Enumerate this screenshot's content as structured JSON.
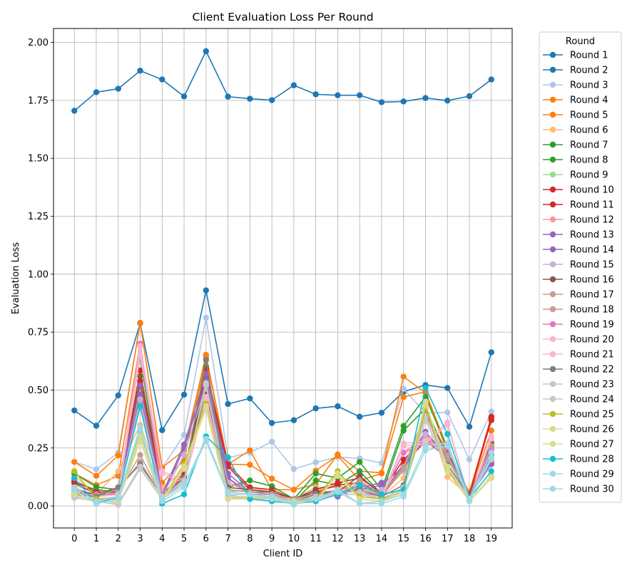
{
  "chart_data": {
    "type": "line",
    "title": "Client Evaluation Loss Per Round",
    "xlabel": "Client ID",
    "ylabel": "Evaluation Loss",
    "xlim": [
      -0.95,
      19.95
    ],
    "ylim": [
      -0.095,
      2.06
    ],
    "x_ticks": [
      0,
      1,
      2,
      3,
      4,
      5,
      6,
      7,
      8,
      9,
      10,
      11,
      12,
      13,
      14,
      15,
      16,
      17,
      18,
      19
    ],
    "y_ticks": [
      0.0,
      0.25,
      0.5,
      0.75,
      1.0,
      1.25,
      1.5,
      1.75,
      2.0
    ],
    "y_tick_labels": [
      "0.00",
      "0.25",
      "0.50",
      "0.75",
      "1.00",
      "1.25",
      "1.50",
      "1.75",
      "2.00"
    ],
    "grid": true,
    "legend_title": "Round",
    "legend_position": "outside-right",
    "x": [
      0,
      1,
      2,
      3,
      4,
      5,
      6,
      7,
      8,
      9,
      10,
      11,
      12,
      13,
      14,
      15,
      16,
      17,
      18,
      19
    ],
    "series": [
      {
        "name": "Round 1",
        "color": "#1f77b4",
        "values": [
          1.705,
          1.785,
          1.8,
          1.878,
          1.84,
          1.767,
          1.962,
          1.766,
          1.757,
          1.751,
          1.815,
          1.776,
          1.772,
          1.772,
          1.742,
          1.745,
          1.76,
          1.749,
          1.768,
          1.84
        ]
      },
      {
        "name": "Round 2",
        "color": "#1f77b4",
        "values": [
          0.412,
          0.346,
          0.477,
          0.788,
          0.327,
          0.48,
          0.93,
          0.44,
          0.464,
          0.358,
          0.37,
          0.421,
          0.43,
          0.385,
          0.402,
          0.493,
          0.522,
          0.509,
          0.342,
          0.663
        ]
      },
      {
        "name": "Round 3",
        "color": "#aec7e8",
        "values": [
          0.19,
          0.158,
          0.23,
          0.79,
          0.165,
          0.306,
          0.812,
          0.208,
          0.23,
          0.277,
          0.159,
          0.188,
          0.211,
          0.205,
          0.185,
          0.505,
          0.4,
          0.404,
          0.2,
          0.407
        ]
      },
      {
        "name": "Round 4",
        "color": "#ff7f0e",
        "values": [
          0.19,
          0.13,
          0.218,
          0.79,
          0.165,
          0.24,
          0.652,
          0.18,
          0.178,
          0.118,
          0.07,
          0.093,
          0.222,
          0.15,
          0.143,
          0.558,
          0.488,
          0.23,
          0.06,
          0.38
        ]
      },
      {
        "name": "Round 5",
        "color": "#ff7f0e",
        "values": [
          0.14,
          0.09,
          0.13,
          0.7,
          0.1,
          0.2,
          0.64,
          0.18,
          0.24,
          0.07,
          0.07,
          0.152,
          0.217,
          0.11,
          0.14,
          0.47,
          0.493,
          0.25,
          0.05,
          0.325
        ]
      },
      {
        "name": "Round 6",
        "color": "#ffbb78",
        "values": [
          0.13,
          0.05,
          0.15,
          0.35,
          0.08,
          0.15,
          0.5,
          0.1,
          0.08,
          0.06,
          0.03,
          0.07,
          0.09,
          0.06,
          0.04,
          0.12,
          0.42,
          0.125,
          0.04,
          0.28
        ]
      },
      {
        "name": "Round 7",
        "color": "#2ca02c",
        "values": [
          0.14,
          0.082,
          0.07,
          0.645,
          0.05,
          0.14,
          0.6,
          0.08,
          0.11,
          0.085,
          0.03,
          0.14,
          0.12,
          0.19,
          0.07,
          0.345,
          0.47,
          0.25,
          0.04,
          0.25
        ]
      },
      {
        "name": "Round 8",
        "color": "#2ca02c",
        "values": [
          0.1,
          0.07,
          0.06,
          0.56,
          0.04,
          0.13,
          0.55,
          0.07,
          0.06,
          0.05,
          0.02,
          0.11,
          0.09,
          0.15,
          0.05,
          0.325,
          0.42,
          0.22,
          0.03,
          0.2
        ]
      },
      {
        "name": "Round 9",
        "color": "#98df8a",
        "values": [
          0.09,
          0.06,
          0.05,
          0.5,
          0.05,
          0.12,
          0.52,
          0.06,
          0.07,
          0.06,
          0.03,
          0.08,
          0.08,
          0.08,
          0.05,
          0.15,
          0.38,
          0.2,
          0.04,
          0.22
        ]
      },
      {
        "name": "Round 10",
        "color": "#d62728",
        "values": [
          0.11,
          0.06,
          0.06,
          0.585,
          0.05,
          0.14,
          0.59,
          0.18,
          0.08,
          0.07,
          0.03,
          0.07,
          0.1,
          0.12,
          0.06,
          0.2,
          0.29,
          0.22,
          0.05,
          0.385
        ]
      },
      {
        "name": "Round 11",
        "color": "#d62728",
        "values": [
          0.1,
          0.05,
          0.05,
          0.54,
          0.04,
          0.13,
          0.57,
          0.17,
          0.07,
          0.06,
          0.03,
          0.06,
          0.09,
          0.1,
          0.05,
          0.18,
          0.28,
          0.21,
          0.05,
          0.37
        ]
      },
      {
        "name": "Round 12",
        "color": "#ff9896",
        "values": [
          0.08,
          0.04,
          0.05,
          0.45,
          0.04,
          0.12,
          0.5,
          0.12,
          0.06,
          0.05,
          0.02,
          0.05,
          0.07,
          0.08,
          0.04,
          0.23,
          0.3,
          0.2,
          0.04,
          0.27
        ]
      },
      {
        "name": "Round 13",
        "color": "#9467bd",
        "values": [
          0.07,
          0.05,
          0.07,
          0.52,
          0.05,
          0.265,
          0.57,
          0.14,
          0.06,
          0.06,
          0.03,
          0.06,
          0.04,
          0.08,
          0.1,
          0.16,
          0.31,
          0.22,
          0.05,
          0.19
        ]
      },
      {
        "name": "Round 14",
        "color": "#9467bd",
        "values": [
          0.06,
          0.04,
          0.06,
          0.48,
          0.04,
          0.25,
          0.54,
          0.12,
          0.05,
          0.05,
          0.02,
          0.05,
          0.05,
          0.07,
          0.09,
          0.17,
          0.32,
          0.21,
          0.04,
          0.18
        ]
      },
      {
        "name": "Round 15",
        "color": "#c5b0d5",
        "values": [
          0.06,
          0.04,
          0.05,
          0.46,
          0.04,
          0.22,
          0.52,
          0.1,
          0.06,
          0.05,
          0.02,
          0.05,
          0.06,
          0.07,
          0.07,
          0.15,
          0.31,
          0.2,
          0.04,
          0.22
        ]
      },
      {
        "name": "Round 16",
        "color": "#8c564b",
        "values": [
          0.06,
          0.05,
          0.08,
          0.18,
          0.04,
          0.12,
          0.48,
          0.08,
          0.07,
          0.06,
          0.03,
          0.06,
          0.06,
          0.13,
          0.05,
          0.16,
          0.4,
          0.23,
          0.05,
          0.27
        ]
      },
      {
        "name": "Round 17",
        "color": "#c49c94",
        "values": [
          0.05,
          0.05,
          0.07,
          0.19,
          0.04,
          0.11,
          0.47,
          0.07,
          0.06,
          0.05,
          0.03,
          0.05,
          0.06,
          0.11,
          0.05,
          0.17,
          0.39,
          0.22,
          0.04,
          0.26
        ]
      },
      {
        "name": "Round 18",
        "color": "#c49c94",
        "values": [
          0.05,
          0.04,
          0.06,
          0.22,
          0.04,
          0.1,
          0.46,
          0.06,
          0.05,
          0.05,
          0.02,
          0.05,
          0.05,
          0.1,
          0.04,
          0.16,
          0.38,
          0.21,
          0.04,
          0.25
        ]
      },
      {
        "name": "Round 19",
        "color": "#e377c2",
        "values": [
          0.05,
          0.04,
          0.05,
          0.7,
          0.05,
          0.12,
          0.45,
          0.03,
          0.04,
          0.04,
          0.02,
          0.04,
          0.06,
          0.06,
          0.04,
          0.23,
          0.27,
          0.25,
          0.04,
          0.24
        ]
      },
      {
        "name": "Round 20",
        "color": "#f7b6d2",
        "values": [
          0.05,
          0.04,
          0.05,
          0.69,
          0.15,
          0.11,
          0.47,
          0.03,
          0.04,
          0.04,
          0.02,
          0.04,
          0.05,
          0.05,
          0.04,
          0.27,
          0.28,
          0.36,
          0.03,
          0.3
        ]
      },
      {
        "name": "Round 21",
        "color": "#f7b6d2",
        "values": [
          0.04,
          0.03,
          0.04,
          0.65,
          0.14,
          0.1,
          0.46,
          0.03,
          0.03,
          0.03,
          0.02,
          0.03,
          0.05,
          0.05,
          0.03,
          0.26,
          0.27,
          0.35,
          0.03,
          0.29
        ]
      },
      {
        "name": "Round 22",
        "color": "#7f7f7f",
        "values": [
          0.05,
          0.04,
          0.08,
          0.18,
          0.04,
          0.12,
          0.63,
          0.05,
          0.03,
          0.04,
          0.02,
          0.05,
          0.06,
          0.07,
          0.04,
          0.09,
          0.42,
          0.18,
          0.04,
          0.22
        ]
      },
      {
        "name": "Round 23",
        "color": "#c7c7c7",
        "values": [
          0.04,
          0.03,
          0.01,
          0.17,
          0.04,
          0.11,
          0.52,
          0.05,
          0.03,
          0.04,
          0.02,
          0.04,
          0.06,
          0.06,
          0.03,
          0.08,
          0.39,
          0.17,
          0.03,
          0.21
        ]
      },
      {
        "name": "Round 24",
        "color": "#c7c7c7",
        "values": [
          0.035,
          0.02,
          0.005,
          0.16,
          0.03,
          0.1,
          0.53,
          0.04,
          0.03,
          0.03,
          0.01,
          0.04,
          0.05,
          0.05,
          0.03,
          0.07,
          0.37,
          0.16,
          0.03,
          0.2
        ]
      },
      {
        "name": "Round 25",
        "color": "#bcbd22",
        "values": [
          0.15,
          0.03,
          0.03,
          0.32,
          0.03,
          0.18,
          0.44,
          0.04,
          0.04,
          0.03,
          0.02,
          0.03,
          0.15,
          0.04,
          0.03,
          0.06,
          0.42,
          0.16,
          0.02,
          0.12
        ]
      },
      {
        "name": "Round 26",
        "color": "#dbdb8d",
        "values": [
          0.06,
          0.02,
          0.02,
          0.3,
          0.03,
          0.17,
          0.43,
          0.04,
          0.04,
          0.03,
          0.02,
          0.02,
          0.14,
          0.03,
          0.02,
          0.07,
          0.44,
          0.17,
          0.02,
          0.13
        ]
      },
      {
        "name": "Round 27",
        "color": "#dbdb8d",
        "values": [
          0.05,
          0.02,
          0.02,
          0.28,
          0.02,
          0.16,
          0.42,
          0.03,
          0.03,
          0.02,
          0.01,
          0.02,
          0.13,
          0.03,
          0.02,
          0.06,
          0.45,
          0.15,
          0.02,
          0.12
        ]
      },
      {
        "name": "Round 28",
        "color": "#17becf",
        "values": [
          0.12,
          0.01,
          0.04,
          0.43,
          0.01,
          0.05,
          0.3,
          0.21,
          0.03,
          0.02,
          0.01,
          0.02,
          0.05,
          0.09,
          0.05,
          0.07,
          0.51,
          0.31,
          0.03,
          0.15
        ]
      },
      {
        "name": "Round 29",
        "color": "#9edae5",
        "values": [
          0.08,
          0.02,
          0.04,
          0.34,
          0.03,
          0.09,
          0.29,
          0.06,
          0.05,
          0.04,
          0.01,
          0.03,
          0.07,
          0.01,
          0.02,
          0.05,
          0.26,
          0.27,
          0.03,
          0.23
        ]
      },
      {
        "name": "Round 30",
        "color": "#9edae5",
        "values": [
          0.07,
          0.01,
          0.03,
          0.33,
          0.02,
          0.08,
          0.28,
          0.05,
          0.05,
          0.03,
          0.005,
          0.03,
          0.06,
          0.01,
          0.01,
          0.04,
          0.24,
          0.26,
          0.02,
          0.21
        ]
      }
    ]
  }
}
